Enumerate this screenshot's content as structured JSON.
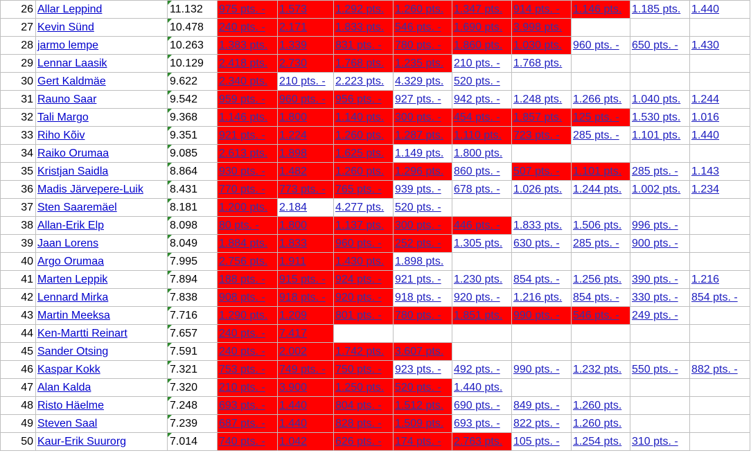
{
  "rows": [
    {
      "rank": "26",
      "name": "Allar Leppind",
      "score": "11.132",
      "cells": [
        {
          "t": "975 pts. -",
          "r": 1
        },
        {
          "t": "1.573",
          "r": 1
        },
        {
          "t": "1.292 pts.",
          "r": 1
        },
        {
          "t": "1.260 pts.",
          "r": 1
        },
        {
          "t": "1.347 pts.",
          "r": 1
        },
        {
          "t": "914 pts. -",
          "r": 1
        },
        {
          "t": "1.146 pts.",
          "r": 1
        },
        {
          "t": "1.185 pts.",
          "r": 0
        },
        {
          "t": "1.440",
          "r": 0
        }
      ]
    },
    {
      "rank": "27",
      "name": "Kevin Sünd",
      "score": "10.478",
      "cells": [
        {
          "t": "240 pts. -",
          "r": 1
        },
        {
          "t": "2.171",
          "r": 1
        },
        {
          "t": "1.833 pts.",
          "r": 1
        },
        {
          "t": "546 pts. -",
          "r": 1
        },
        {
          "t": "1.690 pts.",
          "r": 1
        },
        {
          "t": "3.998 pts.",
          "r": 1
        },
        {
          "t": "",
          "r": 0
        },
        {
          "t": "",
          "r": 0
        },
        {
          "t": "",
          "r": 0
        }
      ]
    },
    {
      "rank": "28",
      "name": "jarmo lempe",
      "score": "10.263",
      "cells": [
        {
          "t": "1.383 pts.",
          "r": 1
        },
        {
          "t": "1.339",
          "r": 1
        },
        {
          "t": "831 pts. -",
          "r": 1
        },
        {
          "t": "780 pts. -",
          "r": 1
        },
        {
          "t": "1.860 pts.",
          "r": 1
        },
        {
          "t": "1.030 pts.",
          "r": 1
        },
        {
          "t": "960 pts. -",
          "r": 0
        },
        {
          "t": "650 pts. -",
          "r": 0
        },
        {
          "t": "1.430",
          "r": 0
        }
      ]
    },
    {
      "rank": "29",
      "name": "Lennar Laasik",
      "score": "10.129",
      "cells": [
        {
          "t": "2.418 pts.",
          "r": 1
        },
        {
          "t": "2.730",
          "r": 1
        },
        {
          "t": "1.768 pts.",
          "r": 1
        },
        {
          "t": "1.235 pts.",
          "r": 1
        },
        {
          "t": "210 pts. -",
          "r": 0
        },
        {
          "t": "1.768 pts.",
          "r": 0
        },
        {
          "t": "",
          "r": 0
        },
        {
          "t": "",
          "r": 0
        },
        {
          "t": "",
          "r": 0
        }
      ]
    },
    {
      "rank": "30",
      "name": "Gert Kaldmäe",
      "score": "9.622",
      "cells": [
        {
          "t": "2.340 pts.",
          "r": 1
        },
        {
          "t": "210 pts. -",
          "r": 0
        },
        {
          "t": "2.223 pts.",
          "r": 0
        },
        {
          "t": "4.329 pts.",
          "r": 0
        },
        {
          "t": "520 pts. -",
          "r": 0
        },
        {
          "t": "",
          "r": 0
        },
        {
          "t": "",
          "r": 0
        },
        {
          "t": "",
          "r": 0
        },
        {
          "t": "",
          "r": 0
        }
      ]
    },
    {
      "rank": "31",
      "name": "Rauno Saar",
      "score": "9.542",
      "cells": [
        {
          "t": "959 pts. -",
          "r": 1
        },
        {
          "t": "960 pts. -",
          "r": 1
        },
        {
          "t": "956 pts. -",
          "r": 1
        },
        {
          "t": "927 pts. -",
          "r": 0
        },
        {
          "t": "942 pts. -",
          "r": 0
        },
        {
          "t": "1.248 pts.",
          "r": 0
        },
        {
          "t": "1.266 pts.",
          "r": 0
        },
        {
          "t": "1.040 pts.",
          "r": 0
        },
        {
          "t": "1.244",
          "r": 0
        }
      ]
    },
    {
      "rank": "32",
      "name": "Tali Margo",
      "score": "9.368",
      "cells": [
        {
          "t": "1.146 pts.",
          "r": 1
        },
        {
          "t": "1.800",
          "r": 1
        },
        {
          "t": "1.140 pts.",
          "r": 1
        },
        {
          "t": "300 pts. -",
          "r": 1
        },
        {
          "t": "454 pts. -",
          "r": 1
        },
        {
          "t": "1.857 pts.",
          "r": 1
        },
        {
          "t": "125 pts. -",
          "r": 1
        },
        {
          "t": "1.530 pts.",
          "r": 0
        },
        {
          "t": "1.016",
          "r": 0
        }
      ]
    },
    {
      "rank": "33",
      "name": "Riho Kõiv",
      "score": "9.351",
      "cells": [
        {
          "t": "921 pts. -",
          "r": 1
        },
        {
          "t": "1.224",
          "r": 1
        },
        {
          "t": "1.260 pts.",
          "r": 1
        },
        {
          "t": "1.287 pts.",
          "r": 1
        },
        {
          "t": "1.110 pts.",
          "r": 1
        },
        {
          "t": "723 pts. -",
          "r": 1
        },
        {
          "t": "285 pts. -",
          "r": 0
        },
        {
          "t": "1.101 pts.",
          "r": 0
        },
        {
          "t": "1.440",
          "r": 0
        }
      ]
    },
    {
      "rank": "34",
      "name": "Raiko Orumaa",
      "score": "9.085",
      "cells": [
        {
          "t": "2.613 pts.",
          "r": 1
        },
        {
          "t": "1.898",
          "r": 1
        },
        {
          "t": "1.625 pts.",
          "r": 1
        },
        {
          "t": "1.149 pts.",
          "r": 0
        },
        {
          "t": "1.800 pts.",
          "r": 0
        },
        {
          "t": "",
          "r": 0
        },
        {
          "t": "",
          "r": 0
        },
        {
          "t": "",
          "r": 0
        },
        {
          "t": "",
          "r": 0
        }
      ]
    },
    {
      "rank": "35",
      "name": "Kristjan Saidla",
      "score": "8.864",
      "cells": [
        {
          "t": "930 pts. -",
          "r": 1
        },
        {
          "t": "1.482",
          "r": 1
        },
        {
          "t": "1.260 pts.",
          "r": 1
        },
        {
          "t": "1.296 pts.",
          "r": 1
        },
        {
          "t": "860 pts. -",
          "r": 0
        },
        {
          "t": "507 pts. -",
          "r": 1
        },
        {
          "t": "1.101 pts.",
          "r": 1
        },
        {
          "t": "285 pts. -",
          "r": 0
        },
        {
          "t": "1.143",
          "r": 0
        }
      ]
    },
    {
      "rank": "36",
      "name": "Madis Järvepere-Luik",
      "score": "8.431",
      "cells": [
        {
          "t": "770 pts. -",
          "r": 1
        },
        {
          "t": "773 pts. -",
          "r": 1
        },
        {
          "t": "765 pts. -",
          "r": 1
        },
        {
          "t": "939 pts. -",
          "r": 0
        },
        {
          "t": "678 pts. -",
          "r": 0
        },
        {
          "t": "1.026 pts.",
          "r": 0
        },
        {
          "t": "1.244 pts.",
          "r": 0
        },
        {
          "t": "1.002 pts.",
          "r": 0
        },
        {
          "t": "1.234",
          "r": 0
        }
      ]
    },
    {
      "rank": "37",
      "name": "Sten Saaremäel",
      "score": "8.181",
      "cells": [
        {
          "t": "1.200 pts.",
          "r": 1
        },
        {
          "t": "2.184",
          "r": 0
        },
        {
          "t": "4.277 pts.",
          "r": 0
        },
        {
          "t": "520 pts. -",
          "r": 0
        },
        {
          "t": "",
          "r": 0
        },
        {
          "t": "",
          "r": 0
        },
        {
          "t": "",
          "r": 0
        },
        {
          "t": "",
          "r": 0
        },
        {
          "t": "",
          "r": 0
        }
      ]
    },
    {
      "rank": "38",
      "name": "Allan-Erik Elp",
      "score": "8.098",
      "cells": [
        {
          "t": "80 pts. -",
          "r": 1
        },
        {
          "t": "1.800",
          "r": 1
        },
        {
          "t": "1.137 pts.",
          "r": 1
        },
        {
          "t": "300 pts. -",
          "r": 1
        },
        {
          "t": "446 pts. -",
          "r": 1
        },
        {
          "t": "1.833 pts.",
          "r": 0
        },
        {
          "t": "1.506 pts.",
          "r": 0
        },
        {
          "t": "996 pts. -",
          "r": 0
        },
        {
          "t": "",
          "r": 0
        }
      ]
    },
    {
      "rank": "39",
      "name": "Jaan Lorens",
      "score": "8.049",
      "cells": [
        {
          "t": "1.884 pts.",
          "r": 1
        },
        {
          "t": "1.833",
          "r": 1
        },
        {
          "t": "960 pts. -",
          "r": 1
        },
        {
          "t": "252 pts. -",
          "r": 1
        },
        {
          "t": "1.305 pts.",
          "r": 0
        },
        {
          "t": "630 pts. -",
          "r": 0
        },
        {
          "t": "285 pts. -",
          "r": 0
        },
        {
          "t": "900 pts. -",
          "r": 0
        },
        {
          "t": "",
          "r": 0
        }
      ]
    },
    {
      "rank": "40",
      "name": "Argo Orumaa",
      "score": "7.995",
      "cells": [
        {
          "t": "2.756 pts.",
          "r": 1
        },
        {
          "t": "1.911",
          "r": 1
        },
        {
          "t": "1.430 pts.",
          "r": 1
        },
        {
          "t": "1.898 pts.",
          "r": 0
        },
        {
          "t": "",
          "r": 0
        },
        {
          "t": "",
          "r": 0
        },
        {
          "t": "",
          "r": 0
        },
        {
          "t": "",
          "r": 0
        },
        {
          "t": "",
          "r": 0
        }
      ]
    },
    {
      "rank": "41",
      "name": "Marten Leppik",
      "score": "7.894",
      "cells": [
        {
          "t": "188 pts. -",
          "r": 1
        },
        {
          "t": "915 pts. -",
          "r": 1
        },
        {
          "t": "924 pts. -",
          "r": 1
        },
        {
          "t": "921 pts. -",
          "r": 0
        },
        {
          "t": "1.230 pts.",
          "r": 0
        },
        {
          "t": "854 pts. -",
          "r": 0
        },
        {
          "t": "1.256 pts.",
          "r": 0
        },
        {
          "t": "390 pts. -",
          "r": 0
        },
        {
          "t": "1.216",
          "r": 0
        }
      ]
    },
    {
      "rank": "42",
      "name": "Lennard Mirka",
      "score": "7.838",
      "cells": [
        {
          "t": "908 pts. -",
          "r": 1
        },
        {
          "t": "918 pts. -",
          "r": 1
        },
        {
          "t": "920 pts. -",
          "r": 1
        },
        {
          "t": "918 pts. -",
          "r": 0
        },
        {
          "t": "920 pts. -",
          "r": 0
        },
        {
          "t": "1.216 pts.",
          "r": 0
        },
        {
          "t": "854 pts. -",
          "r": 0
        },
        {
          "t": "330 pts. -",
          "r": 0
        },
        {
          "t": "854 pts. -",
          "r": 0
        }
      ]
    },
    {
      "rank": "43",
      "name": "Martin Meeksa",
      "score": "7.716",
      "cells": [
        {
          "t": "1.290 pts.",
          "r": 1
        },
        {
          "t": "1.209",
          "r": 1
        },
        {
          "t": "801 pts. -",
          "r": 1
        },
        {
          "t": "780 pts. -",
          "r": 1
        },
        {
          "t": "1.851 pts.",
          "r": 1
        },
        {
          "t": "990 pts. -",
          "r": 1
        },
        {
          "t": "546 pts. -",
          "r": 1
        },
        {
          "t": "249 pts. -",
          "r": 0
        },
        {
          "t": "",
          "r": 0
        }
      ]
    },
    {
      "rank": "44",
      "name": "Ken-Martti Reinart",
      "score": "7.657",
      "cells": [
        {
          "t": "240 pts. -",
          "r": 1
        },
        {
          "t": "7.417",
          "r": 1
        },
        {
          "t": "",
          "r": 0
        },
        {
          "t": "",
          "r": 0
        },
        {
          "t": "",
          "r": 0
        },
        {
          "t": "",
          "r": 0
        },
        {
          "t": "",
          "r": 0
        },
        {
          "t": "",
          "r": 0
        },
        {
          "t": "",
          "r": 0
        }
      ]
    },
    {
      "rank": "45",
      "name": "Sander Otsing",
      "score": "7.591",
      "cells": [
        {
          "t": "240 pts. -",
          "r": 1
        },
        {
          "t": "2.002",
          "r": 1
        },
        {
          "t": "1.742 pts.",
          "r": 1
        },
        {
          "t": "3.607 pts.",
          "r": 1
        },
        {
          "t": "",
          "r": 0
        },
        {
          "t": "",
          "r": 0
        },
        {
          "t": "",
          "r": 0
        },
        {
          "t": "",
          "r": 0
        },
        {
          "t": "",
          "r": 0
        }
      ]
    },
    {
      "rank": "46",
      "name": "Kaspar Kokk",
      "score": "7.321",
      "cells": [
        {
          "t": "753 pts. -",
          "r": 1
        },
        {
          "t": "749 pts. -",
          "r": 1
        },
        {
          "t": "750 pts. -",
          "r": 1
        },
        {
          "t": "923 pts. -",
          "r": 0
        },
        {
          "t": "492 pts. -",
          "r": 0
        },
        {
          "t": "990 pts. -",
          "r": 0
        },
        {
          "t": "1.232 pts.",
          "r": 0
        },
        {
          "t": "550 pts. -",
          "r": 0
        },
        {
          "t": "882 pts. -",
          "r": 0
        }
      ]
    },
    {
      "rank": "47",
      "name": "Alan Kalda",
      "score": "7.320",
      "cells": [
        {
          "t": "210 pts. -",
          "r": 1
        },
        {
          "t": "3.900",
          "r": 1
        },
        {
          "t": "1.250 pts.",
          "r": 1
        },
        {
          "t": "520 pts. -",
          "r": 1
        },
        {
          "t": "1.440 pts.",
          "r": 0
        },
        {
          "t": "",
          "r": 0
        },
        {
          "t": "",
          "r": 0
        },
        {
          "t": "",
          "r": 0
        },
        {
          "t": "",
          "r": 0
        }
      ]
    },
    {
      "rank": "48",
      "name": "Risto Häelme",
      "score": "7.248",
      "cells": [
        {
          "t": "693 pts. -",
          "r": 1
        },
        {
          "t": "1.440",
          "r": 1
        },
        {
          "t": "804 pts. -",
          "r": 1
        },
        {
          "t": "1.512 pts.",
          "r": 1
        },
        {
          "t": "690 pts. -",
          "r": 0
        },
        {
          "t": "849 pts. -",
          "r": 0
        },
        {
          "t": "1.260 pts.",
          "r": 0
        },
        {
          "t": "",
          "r": 0
        },
        {
          "t": "",
          "r": 0
        }
      ]
    },
    {
      "rank": "49",
      "name": "Steven Saal",
      "score": "7.239",
      "cells": [
        {
          "t": "687 pts. -",
          "r": 1
        },
        {
          "t": "1.440",
          "r": 1
        },
        {
          "t": "828 pts. -",
          "r": 1
        },
        {
          "t": "1.509 pts.",
          "r": 1
        },
        {
          "t": "693 pts. -",
          "r": 0
        },
        {
          "t": "822 pts. -",
          "r": 0
        },
        {
          "t": "1.260 pts.",
          "r": 0
        },
        {
          "t": "",
          "r": 0
        },
        {
          "t": "",
          "r": 0
        }
      ]
    },
    {
      "rank": "50",
      "name": "Kaur-Erik Suurorg",
      "score": "7.014",
      "cells": [
        {
          "t": "740 pts. -",
          "r": 1
        },
        {
          "t": "1.042",
          "r": 1
        },
        {
          "t": "626 pts. -",
          "r": 1
        },
        {
          "t": "174 pts. -",
          "r": 1
        },
        {
          "t": "2.763 pts.",
          "r": 1
        },
        {
          "t": "105 pts. -",
          "r": 0
        },
        {
          "t": "1.254 pts.",
          "r": 0
        },
        {
          "t": "310 pts. -",
          "r": 0
        },
        {
          "t": "",
          "r": 0
        }
      ]
    }
  ],
  "colors": {
    "highlight": "#ff0000",
    "link": "#1c1cbf",
    "grid": "#bfbfbf",
    "note_marker": "#2e8b2e"
  }
}
